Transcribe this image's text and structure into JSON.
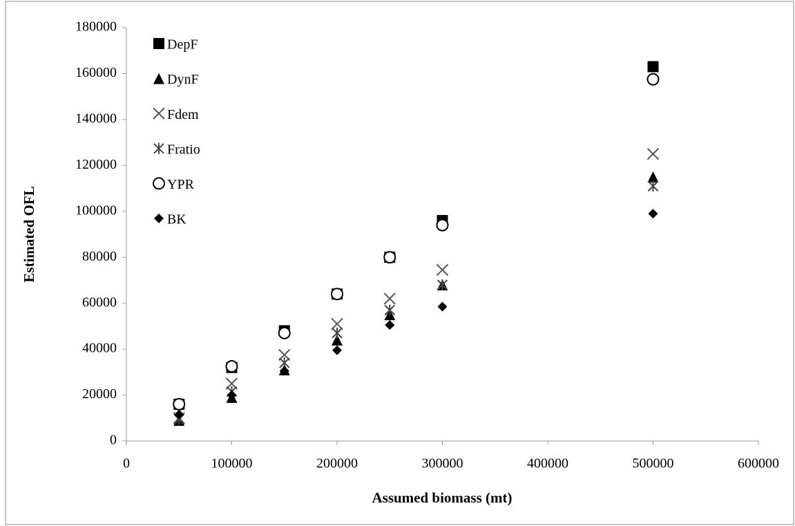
{
  "chart_data": {
    "type": "scatter",
    "x_label": "Assumed biomass (mt)",
    "y_label": "Estimated OFL",
    "x": [
      50000,
      100000,
      150000,
      200000,
      250000,
      300000,
      500000
    ],
    "series": [
      {
        "name": "DepF",
        "color": "#000000",
        "marker": "square",
        "values": [
          16000,
          32000,
          48000,
          64000,
          80000,
          96000,
          163000
        ]
      },
      {
        "name": "DynF",
        "color": "#000000",
        "marker": "triangle",
        "values": [
          9000,
          19000,
          31000,
          44000,
          55000,
          68000,
          115000
        ]
      },
      {
        "name": "Fdem",
        "color": "#555555",
        "marker": "cross",
        "values": [
          10000,
          25000,
          37500,
          51000,
          62000,
          74500,
          125000
        ]
      },
      {
        "name": "Fratio",
        "color": "#444444",
        "marker": "asterisk",
        "values": [
          9500,
          21500,
          34000,
          47000,
          57000,
          68000,
          111000
        ]
      },
      {
        "name": "YPR",
        "color": "#000000",
        "marker": "circle",
        "values": [
          16000,
          32500,
          47000,
          64000,
          80000,
          94000,
          157500
        ]
      },
      {
        "name": "BK",
        "color": "#000000",
        "marker": "diamond",
        "values": [
          11500,
          20000,
          30500,
          39500,
          50500,
          58500,
          99000
        ]
      }
    ],
    "xlim": [
      0,
      600000
    ],
    "xticks": [
      0,
      100000,
      200000,
      300000,
      400000,
      500000,
      600000
    ],
    "ylim": [
      0,
      180000
    ],
    "yticks": [
      0,
      20000,
      40000,
      60000,
      80000,
      100000,
      120000,
      140000,
      160000,
      180000
    ],
    "grid": false,
    "legend": "upper-left"
  }
}
